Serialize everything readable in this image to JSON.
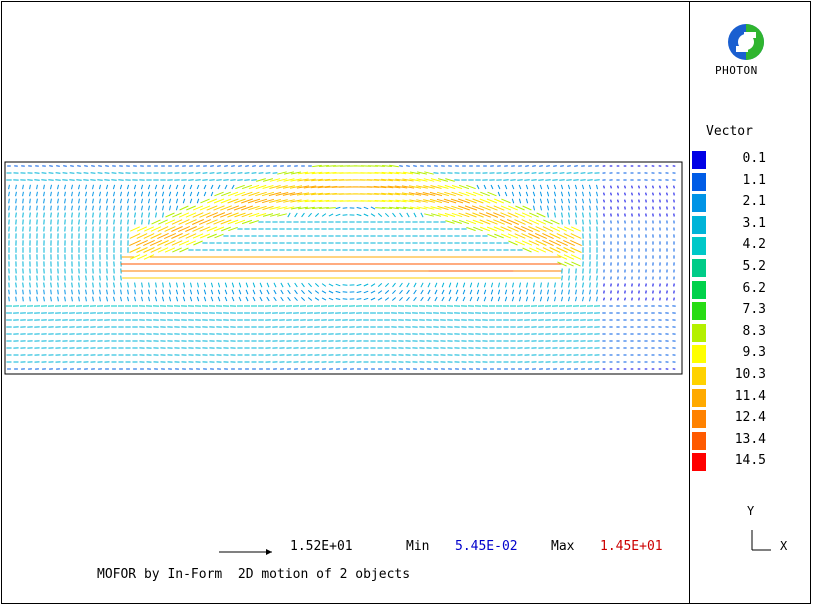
{
  "brand": {
    "name": "PHOTON",
    "logo_icon": "phoenics-photon-logo-icon"
  },
  "legend": {
    "title": "Vector",
    "items": [
      {
        "label": "0.1",
        "color": "#0000e6"
      },
      {
        "label": "1.1",
        "color": "#005ce6"
      },
      {
        "label": "2.1",
        "color": "#0094e6"
      },
      {
        "label": "3.1",
        "color": "#00b4d8"
      },
      {
        "label": "4.2",
        "color": "#00c8c8"
      },
      {
        "label": "5.2",
        "color": "#00cc88"
      },
      {
        "label": "6.2",
        "color": "#00d24a"
      },
      {
        "label": "7.3",
        "color": "#28dc14"
      },
      {
        "label": "8.3",
        "color": "#b4f000"
      },
      {
        "label": "9.3",
        "color": "#ffff00"
      },
      {
        "label": "10.3",
        "color": "#ffd200"
      },
      {
        "label": "11.4",
        "color": "#ffaa00"
      },
      {
        "label": "12.4",
        "color": "#ff8200"
      },
      {
        "label": "13.4",
        "color": "#ff5a00"
      },
      {
        "label": "14.5",
        "color": "#ff0000"
      }
    ]
  },
  "footer": {
    "scale_value": "1.52E+01",
    "min_label": "Min",
    "min_value": "5.45E-02",
    "max_label": "Max",
    "max_value": "1.45E+01",
    "caption": "MOFOR by In-Form  2D motion of 2 objects"
  },
  "axes": {
    "y_label": "Y",
    "x_label": "X"
  },
  "chart_data": {
    "type": "vector_field",
    "title": "",
    "quantity": "Vector",
    "min": 0.0545,
    "max": 14.5,
    "reference_vector_magnitude": 15.2,
    "colorbar_levels": [
      0.1,
      1.1,
      2.1,
      3.1,
      4.2,
      5.2,
      6.2,
      7.3,
      8.3,
      9.3,
      10.3,
      11.4,
      12.4,
      13.4,
      14.5
    ],
    "features": [
      {
        "name": "upper arched jet",
        "magnitude_range": [
          9.3,
          12.4
        ],
        "direction": "left-to-right"
      },
      {
        "name": "lower straight jet",
        "magnitude_range": [
          10.3,
          14.5
        ],
        "direction": "left-to-right"
      },
      {
        "name": "surrounding recirculation",
        "magnitude_range": [
          1.1,
          6.2
        ]
      }
    ]
  }
}
